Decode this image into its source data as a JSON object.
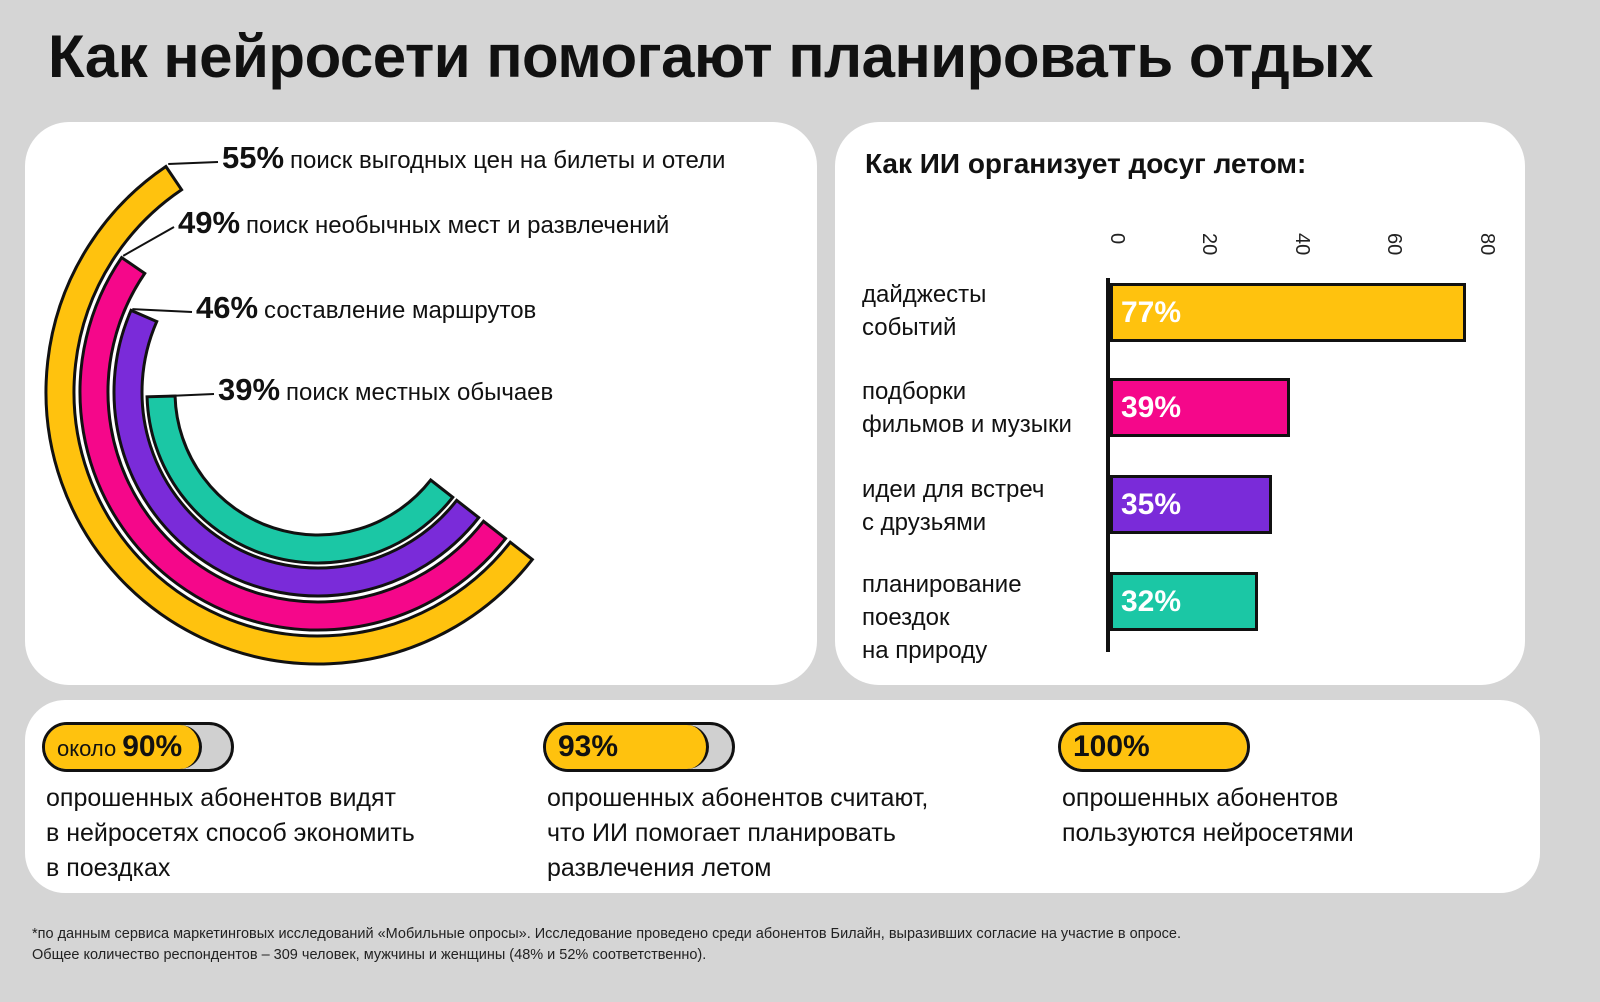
{
  "title": "Как нейросети помогают планировать отдых",
  "colors": {
    "yellow": "#FFC20E",
    "pink": "#F5078A",
    "purple": "#7A2BD9",
    "teal": "#1BC7A5",
    "background": "#D5D5D5"
  },
  "chart_data": [
    {
      "type": "radial-bar",
      "series": [
        {
          "value": 55,
          "label": "55%",
          "text": "поиск выгодных цен на билеты и отели",
          "color": "#FFC20E"
        },
        {
          "value": 49,
          "label": "49%",
          "text": "поиск необычных мест и развлечений",
          "color": "#F5078A"
        },
        {
          "value": 46,
          "label": "46%",
          "text": "составление маршрутов",
          "color": "#7A2BD9"
        },
        {
          "value": 39,
          "label": "39%",
          "text": "поиск местных обычаев",
          "color": "#1BC7A5"
        }
      ]
    },
    {
      "type": "bar",
      "orientation": "horizontal",
      "title": "Как ИИ организует досуг летом:",
      "xlim": [
        0,
        80
      ],
      "ticks": [
        "0",
        "20",
        "40",
        "60",
        "80"
      ],
      "categories": [
        [
          "дайджесты",
          "событий"
        ],
        [
          "подборки",
          "фильмов и музыки"
        ],
        [
          "идеи для встреч",
          "с друзьями"
        ],
        [
          "планирование",
          "поездок",
          "на природу"
        ]
      ],
      "values": [
        77,
        39,
        35,
        32
      ],
      "labels": [
        "77%",
        "39%",
        "35%",
        "32%"
      ],
      "colors": [
        "#FFC20E",
        "#F5078A",
        "#7A2BD9",
        "#1BC7A5"
      ]
    }
  ],
  "stats": [
    {
      "prefix": "около",
      "value": "90%",
      "fill": 90,
      "lines": [
        "опрошенных абонентов видят",
        "в нейросетях способ экономить",
        "в поездках"
      ]
    },
    {
      "prefix": "",
      "value": "93%",
      "fill": 93,
      "lines": [
        "опрошенных абонентов считают,",
        "что ИИ помогает планировать",
        "развлечения летом"
      ]
    },
    {
      "prefix": "",
      "value": "100%",
      "fill": 100,
      "lines": [
        "опрошенных абонентов",
        "пользуются нейросетями"
      ]
    }
  ],
  "footnote": [
    "*по данным сервиса маркетинговых исследований «Мобильные опросы». Исследование проведено среди абонентов Билайн, выразивших согласие на участие в опросе.",
    "Общее количество респондентов – 309 человек, мужчины и женщины (48% и 52% соответственно)."
  ]
}
